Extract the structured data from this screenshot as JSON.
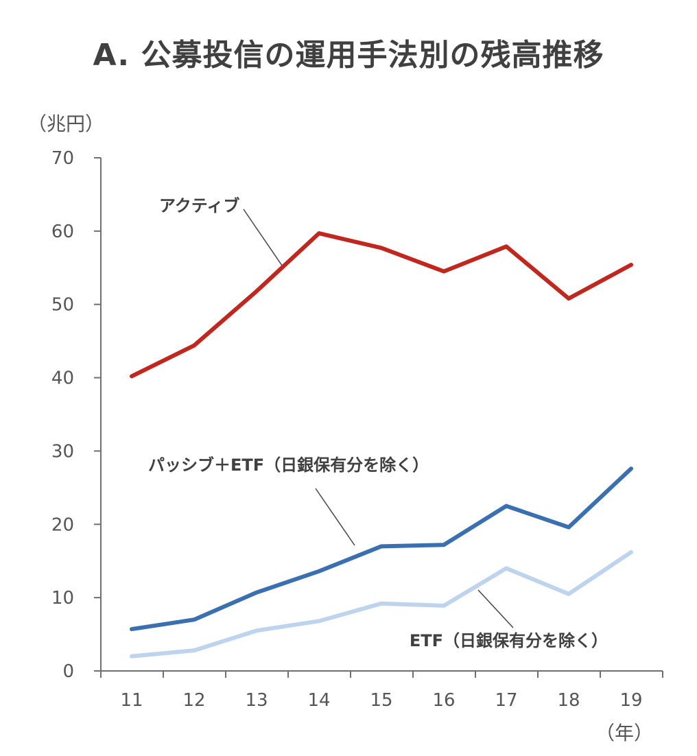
{
  "chart_data": {
    "type": "line",
    "title": "A. 公募投信の運用手法別の残高推移",
    "ylabel": "（兆円）",
    "xlabel": "（年）",
    "categories": [
      "11",
      "12",
      "13",
      "14",
      "15",
      "16",
      "17",
      "18",
      "19"
    ],
    "ylim": [
      0,
      70
    ],
    "yticks": [
      0,
      10,
      20,
      30,
      40,
      50,
      60,
      70
    ],
    "grid": false,
    "legend": "none",
    "series": [
      {
        "name": "アクティブ",
        "color": "#C0271E",
        "values": [
          40.2,
          44.4,
          51.8,
          59.7,
          57.7,
          54.5,
          57.9,
          50.8,
          55.4
        ]
      },
      {
        "name": "パッシブ＋ETF（日銀保有分を除く）",
        "color": "#3A6FB0",
        "values": [
          5.7,
          7.0,
          10.7,
          13.6,
          17.0,
          17.2,
          22.5,
          19.6,
          27.6
        ]
      },
      {
        "name": "ETF（日銀保有分を除く）",
        "color": "#BDD3EE",
        "values": [
          2.0,
          2.8,
          5.5,
          6.8,
          9.2,
          8.9,
          14.0,
          10.5,
          16.2
        ]
      }
    ]
  }
}
